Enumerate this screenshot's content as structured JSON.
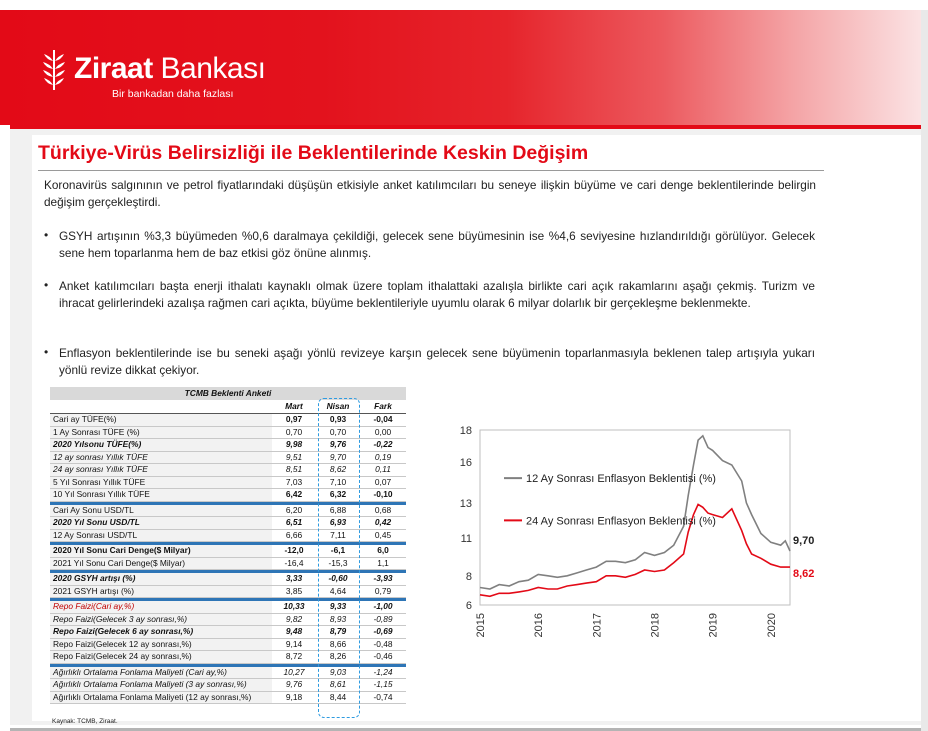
{
  "brand": {
    "name_bold": "Ziraat",
    "name_rest": " Bankası",
    "tagline": "Bir bankadan daha fazlası"
  },
  "title": "Türkiye-Virüs Belirsizliği ile Beklentilerinde Keskin Değişim",
  "intro": "Koronavirüs salgınının ve petrol fiyatlarındaki düşüşün etkisiyle anket katılımcıları bu seneye ilişkin büyüme ve cari denge beklentilerinde belirgin değişim gerçekleştirdi.",
  "bullets": [
    "GSYH artışının %3,3 büyümeden %0,6 daralmaya çekildiği, gelecek sene büyümesinin ise %4,6 seviyesine hızlandırıldığı görülüyor. Gelecek sene hem toparlanma hem de baz etkisi göz önüne alınmış.",
    "Anket katılımcıları başta enerji ithalatı kaynaklı olmak üzere toplam ithalattaki azalışla birlikte cari açık rakamlarını aşağı çekmiş. Turizm ve ihracat gelirlerindeki azalışa rağmen cari açıkta, büyüme beklentileriyle uyumlu olarak 6 milyar dolarlık bir gerçekleşme beklenmekte.",
    "Enflasyon beklentilerinde ise bu seneki aşağı yönlü revizeye karşın gelecek sene büyümenin toparlanmasıyla beklenen talep artışıyla yukarı yönlü revize dikkat çekiyor."
  ],
  "bullet_glyph": "•",
  "table": {
    "caption": "TCMB Beklenti Anketi",
    "headers": [
      "",
      "Mart",
      "Nisan",
      "Fark"
    ],
    "rows": [
      {
        "label": "Cari ay TÜFE(%)",
        "mart": "0,97",
        "nisan": "0,93",
        "fark": "-0,04",
        "style": "bold-nums"
      },
      {
        "label": "1 Ay Sonrası TÜFE (%)",
        "mart": "0,70",
        "nisan": "0,70",
        "fark": "0,00",
        "style": ""
      },
      {
        "label": "2020 Yılsonu TÜFE(%)",
        "mart": "9,98",
        "nisan": "9,76",
        "fark": "-0,22",
        "style": "bold it"
      },
      {
        "label": "12 ay sonrası Yıllık TÜFE",
        "mart": "9,51",
        "nisan": "9,70",
        "fark": "0,19",
        "style": "it"
      },
      {
        "label": "24 ay sonrası Yıllık TÜFE",
        "mart": "8,51",
        "nisan": "8,62",
        "fark": "0,11",
        "style": "it"
      },
      {
        "label": "5 Yıl Sonrası Yıllık TÜFE",
        "mart": "7,03",
        "nisan": "7,10",
        "fark": "0,07",
        "style": ""
      },
      {
        "label": "10 Yıl Sonrası Yıllık TÜFE",
        "mart": "6,42",
        "nisan": "6,32",
        "fark": "-0,10",
        "style": "bold-nums"
      },
      {
        "sep": true
      },
      {
        "label": "Cari Ay Sonu USD/TL",
        "mart": "6,20",
        "nisan": "6,88",
        "fark": "0,68",
        "style": ""
      },
      {
        "label": "2020 Yıl Sonu USD/TL",
        "mart": "6,51",
        "nisan": "6,93",
        "fark": "0,42",
        "style": "bold it"
      },
      {
        "label": "12 Ay Sonrası USD/TL",
        "mart": "6,66",
        "nisan": "7,11",
        "fark": "0,45",
        "style": ""
      },
      {
        "sep": true
      },
      {
        "label": "2020 Yıl Sonu Cari Denge($ Milyar)",
        "mart": "-12,0",
        "nisan": "-6,1",
        "fark": "6,0",
        "style": "bold"
      },
      {
        "label": "2021 Yıl Sonu Cari Denge($ Milyar)",
        "mart": "-16,4",
        "nisan": "-15,3",
        "fark": "1,1",
        "style": ""
      },
      {
        "sep": true
      },
      {
        "label": "2020 GSYH artışı (%)",
        "mart": "3,33",
        "nisan": "-0,60",
        "fark": "-3,93",
        "style": "bold it"
      },
      {
        "label": "2021 GSYH artışı (%)",
        "mart": "3,85",
        "nisan": "4,64",
        "fark": "0,79",
        "style": ""
      },
      {
        "sep": true
      },
      {
        "label": "Repo Faizi(Cari ay,%)",
        "mart": "10,33",
        "nisan": "9,33",
        "fark": "-1,00",
        "style": "it red bold-nums"
      },
      {
        "label": "Repo Faizi(Gelecek 3 ay sonrası,%)",
        "mart": "9,82",
        "nisan": "8,93",
        "fark": "-0,89",
        "style": "it"
      },
      {
        "label": "Repo Faizi(Gelecek 6 ay sonrası,%)",
        "mart": "9,48",
        "nisan": "8,79",
        "fark": "-0,69",
        "style": "bold it"
      },
      {
        "label": "Repo Faizi(Gelecek 12 ay sonrası,%)",
        "mart": "9,14",
        "nisan": "8,66",
        "fark": "-0,48",
        "style": ""
      },
      {
        "label": "Repo Faizi(Gelecek 24 ay sonrası,%)",
        "mart": "8,72",
        "nisan": "8,26",
        "fark": "-0,46",
        "style": ""
      },
      {
        "sep": true
      },
      {
        "label": "Ağırlıklı Ortalama Fonlama Maliyeti (Cari ay,%)",
        "mart": "10,27",
        "nisan": "9,03",
        "fark": "-1,24",
        "style": "it"
      },
      {
        "label": "Ağırlıklı Ortalama Fonlama Maliyeti (3 ay sonrası,%)",
        "mart": "9,76",
        "nisan": "8,61",
        "fark": "-1,15",
        "style": "it"
      },
      {
        "label": "Ağırlıklı Ortalama Fonlama Maliyeti (12 ay sonrası,%)",
        "mart": "9,18",
        "nisan": "8,44",
        "fark": "-0,74",
        "style": ""
      }
    ],
    "source": "Kaynak: TCMB, Ziraat."
  },
  "chart_data": {
    "type": "line",
    "title": "",
    "xlabel": "",
    "ylabel": "",
    "xlim": [
      2015,
      2020.33
    ],
    "ylim": [
      6,
      18
    ],
    "yticks": [
      "6",
      "8",
      "11",
      "13",
      "16",
      "18"
    ],
    "ytick_values": [
      6,
      8,
      10.6,
      13,
      15.8,
      18
    ],
    "xticks": [
      "2015",
      "2016",
      "2017",
      "2018",
      "2019",
      "2020"
    ],
    "grid": false,
    "series": [
      {
        "name": "12 Ay Sonrası Enflasyon Beklentisi (%)",
        "color": "#808080",
        "end_label": "9,70",
        "x": [
          2015.0,
          2015.17,
          2015.33,
          2015.5,
          2015.67,
          2015.83,
          2016.0,
          2016.17,
          2016.33,
          2016.5,
          2016.67,
          2016.83,
          2017.0,
          2017.17,
          2017.33,
          2017.5,
          2017.67,
          2017.83,
          2018.0,
          2018.17,
          2018.33,
          2018.5,
          2018.58,
          2018.67,
          2018.75,
          2018.83,
          2018.92,
          2019.0,
          2019.17,
          2019.33,
          2019.5,
          2019.58,
          2019.67,
          2019.83,
          2020.0,
          2020.17,
          2020.25,
          2020.33
        ],
        "y": [
          7.2,
          7.1,
          7.4,
          7.3,
          7.6,
          7.7,
          8.1,
          8.0,
          7.9,
          8.0,
          8.2,
          8.4,
          8.6,
          9.0,
          9.0,
          8.9,
          9.1,
          9.6,
          9.4,
          9.6,
          10.1,
          11.4,
          13.5,
          15.6,
          17.3,
          17.6,
          16.8,
          16.6,
          15.9,
          15.6,
          14.5,
          13.0,
          12.2,
          10.9,
          10.3,
          10.1,
          10.4,
          9.7
        ]
      },
      {
        "name": "24 Ay Sonrası Enflasyon Beklentisi (%)",
        "color": "#e30a17",
        "end_label": "8,62",
        "x": [
          2015.0,
          2015.17,
          2015.33,
          2015.5,
          2015.67,
          2015.83,
          2016.0,
          2016.17,
          2016.33,
          2016.5,
          2016.67,
          2016.83,
          2017.0,
          2017.17,
          2017.33,
          2017.5,
          2017.67,
          2017.83,
          2018.0,
          2018.17,
          2018.33,
          2018.5,
          2018.58,
          2018.67,
          2018.75,
          2018.83,
          2018.92,
          2019.0,
          2019.17,
          2019.33,
          2019.5,
          2019.58,
          2019.67,
          2019.83,
          2020.0,
          2020.17,
          2020.25,
          2020.33
        ],
        "y": [
          6.7,
          6.6,
          6.8,
          6.8,
          6.9,
          7.0,
          7.2,
          7.1,
          7.1,
          7.3,
          7.4,
          7.5,
          7.6,
          8.0,
          8.0,
          7.9,
          8.1,
          8.4,
          8.3,
          8.4,
          8.9,
          9.5,
          11.0,
          12.2,
          12.9,
          12.7,
          12.3,
          12.2,
          12.0,
          12.6,
          11.1,
          10.2,
          9.5,
          9.2,
          8.8,
          8.6,
          8.6,
          8.6
        ]
      }
    ]
  }
}
